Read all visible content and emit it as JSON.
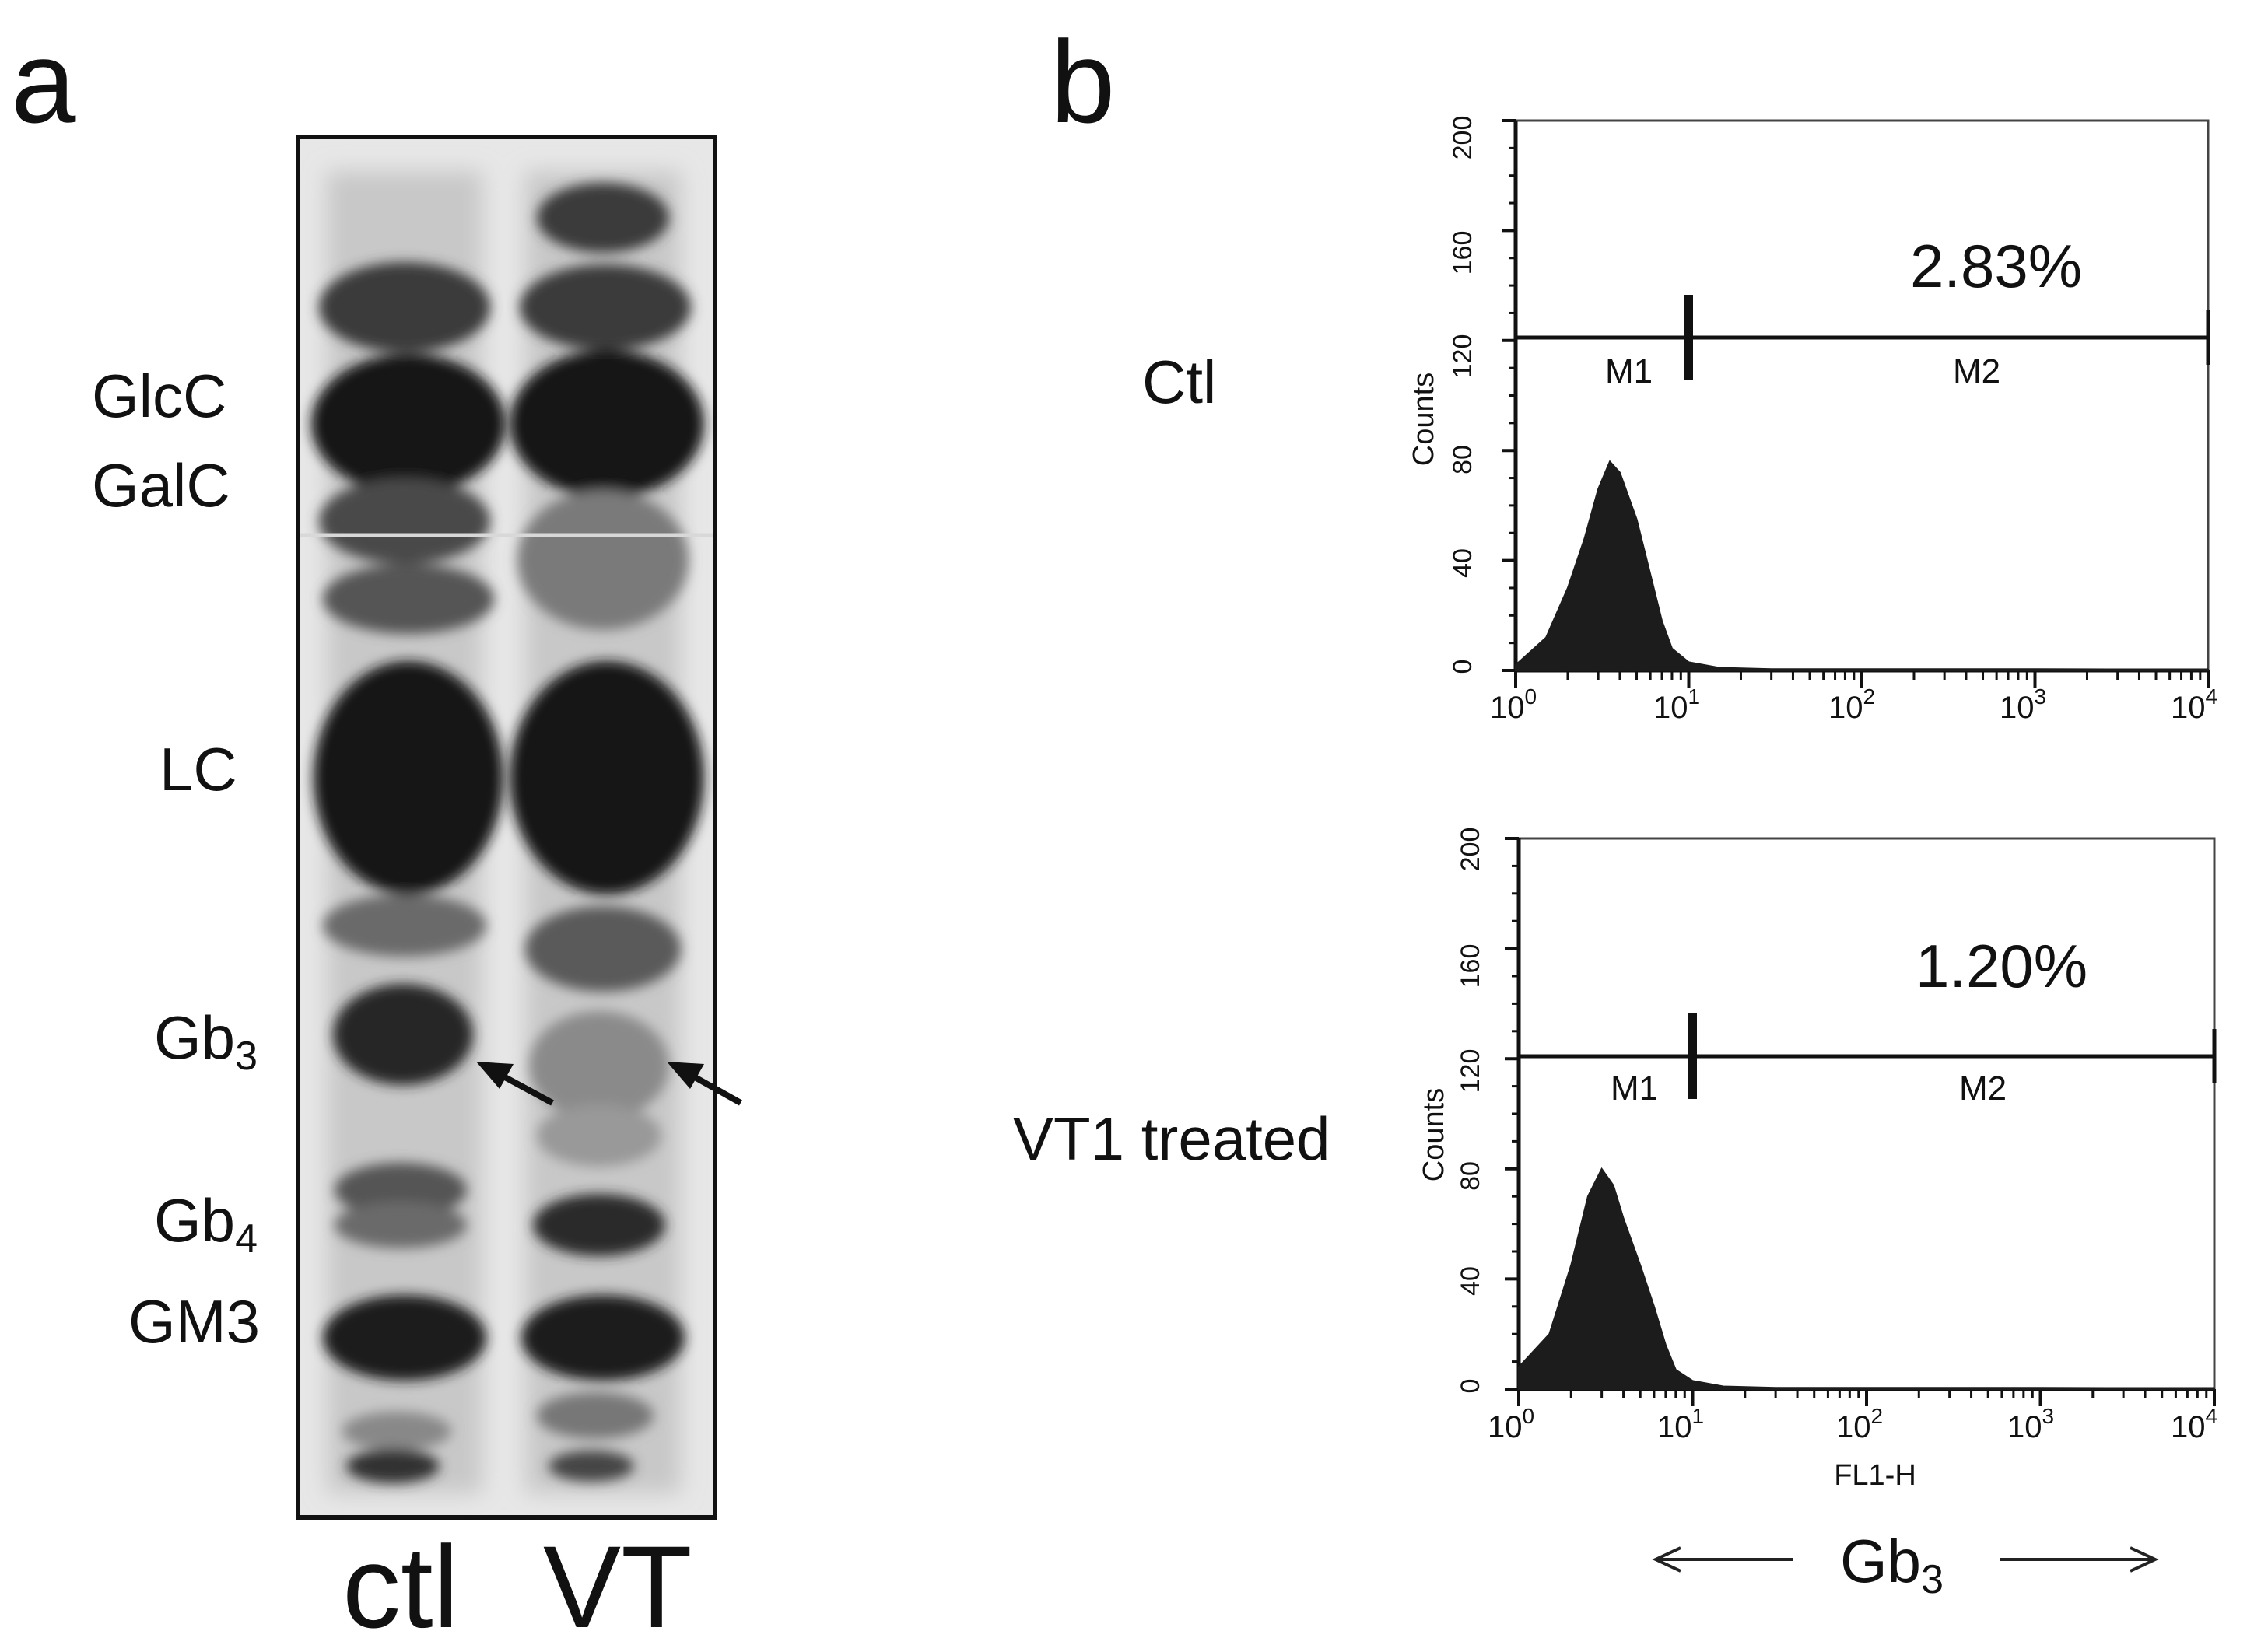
{
  "panel_a": {
    "letter": "a",
    "bands": {
      "glcc": "GlcC",
      "galc": "GalC",
      "lc": "LC",
      "gb3_base": "Gb",
      "gb3_sub": "3",
      "gb4_base": "Gb",
      "gb4_sub": "4",
      "gm3": "GM3"
    },
    "lanes": [
      "ctl",
      "VT"
    ]
  },
  "panel_b": {
    "letter": "b",
    "x_axis_caption_base": "Gb",
    "x_axis_caption_sub": "3",
    "plots": [
      {
        "row_label": "Ctl",
        "percent": "2.83%",
        "marker_1": "M1",
        "marker_2": "M2",
        "ylabel": "Counts",
        "xlabel": "",
        "yticks": [
          "0",
          "40",
          "80",
          "120",
          "160",
          "200"
        ],
        "xticks_base": [
          "10",
          "10",
          "10",
          "10",
          "10"
        ],
        "xticks_exp": [
          "0",
          "1",
          "2",
          "3",
          "4"
        ]
      },
      {
        "row_label": "VT1 treated",
        "percent": "1.20%",
        "marker_1": "M1",
        "marker_2": "M2",
        "ylabel": "Counts",
        "xlabel": "FL1-H",
        "yticks": [
          "0",
          "40",
          "80",
          "120",
          "160",
          "200"
        ],
        "xticks_base": [
          "10",
          "10",
          "10",
          "10",
          "10"
        ],
        "xticks_exp": [
          "0",
          "1",
          "2",
          "3",
          "4"
        ]
      }
    ]
  },
  "chart_data": [
    {
      "type": "area",
      "title": "",
      "xlabel": "",
      "ylabel": "Counts",
      "x_scale": "log",
      "xlim": [
        1,
        10000
      ],
      "ylim": [
        0,
        200
      ],
      "x": [
        1,
        1.5,
        2,
        2.5,
        3,
        3.5,
        4,
        5,
        6,
        7,
        8,
        10,
        15,
        30,
        100,
        1000,
        10000
      ],
      "y": [
        2,
        12,
        30,
        48,
        66,
        76,
        72,
        55,
        35,
        18,
        8,
        3,
        1,
        0.5,
        0.5,
        0.5,
        0.3
      ],
      "gate_m1": [
        1,
        10
      ],
      "gate_m2": [
        10,
        10000
      ],
      "gate_m2_percent": 2.83
    },
    {
      "type": "area",
      "title": "",
      "xlabel": "FL1-H",
      "ylabel": "Counts",
      "x_scale": "log",
      "xlim": [
        1,
        10000
      ],
      "ylim": [
        0,
        200
      ],
      "x": [
        1,
        1.5,
        2,
        2.5,
        3,
        3.5,
        4,
        5,
        6,
        7,
        8,
        10,
        15,
        30,
        100,
        1000,
        10000
      ],
      "y": [
        8,
        20,
        45,
        70,
        80,
        74,
        62,
        45,
        30,
        16,
        7,
        3,
        1,
        0.5,
        0.5,
        0.5,
        0.3
      ],
      "gate_m1": [
        1,
        10
      ],
      "gate_m2": [
        10,
        10000
      ],
      "gate_m2_percent": 1.2
    }
  ]
}
